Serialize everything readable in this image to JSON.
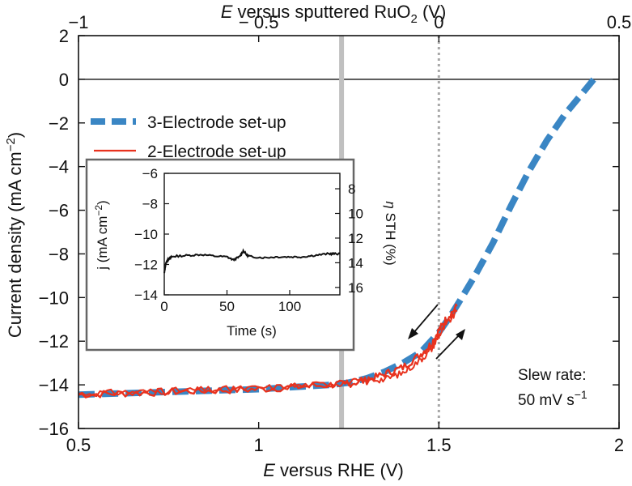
{
  "chart_data": {
    "type": "line",
    "main": {
      "x_label_prefix": "E",
      "x_label_rest": " versus RHE (V)",
      "top_label_prefix": "E",
      "top_label_rest": " versus sputtered RuO",
      "top_label_sub": "2",
      "top_label_end": " (V)",
      "y_label_main": "Current density (mA cm",
      "y_label_sup": "−2",
      "y_label_end": ")",
      "xlim": [
        0.5,
        2.0
      ],
      "ylim": [
        -16,
        2
      ],
      "x_ticks": [
        0.5,
        1.0,
        1.5,
        2.0
      ],
      "x_tick_labels": [
        "0.5",
        "1",
        "1.5",
        "2"
      ],
      "y_ticks": [
        2,
        0,
        -2,
        -4,
        -6,
        -8,
        -10,
        -12,
        -14,
        -16
      ],
      "y_tick_labels": [
        "2",
        "0",
        "−2",
        "−4",
        "−6",
        "−8",
        "−10",
        "−12",
        "−14",
        "−16"
      ],
      "top_ticks": [
        -1,
        -0.5,
        0,
        0.5
      ],
      "top_tick_labels": [
        "−1",
        "− 0.5",
        "0",
        "0.5"
      ],
      "top_offset": 1.5,
      "zero_line_y": 0,
      "vline_gray_x": 1.23,
      "vline_dotted_x": 1.5,
      "series": [
        {
          "name": "3-Electrode set-up",
          "color": "#3a86c4",
          "style": "dashed",
          "x": [
            0.5,
            0.6,
            0.7,
            0.8,
            0.9,
            1.0,
            1.1,
            1.2,
            1.25,
            1.3,
            1.35,
            1.4,
            1.45,
            1.5,
            1.53,
            1.56,
            1.6,
            1.65,
            1.7,
            1.75,
            1.8,
            1.85,
            1.9,
            1.93
          ],
          "y": [
            -14.45,
            -14.4,
            -14.35,
            -14.3,
            -14.25,
            -14.2,
            -14.1,
            -14.0,
            -13.9,
            -13.7,
            -13.4,
            -13.0,
            -12.5,
            -11.6,
            -10.9,
            -10.1,
            -9.0,
            -7.5,
            -5.8,
            -4.2,
            -2.8,
            -1.6,
            -0.6,
            0.0
          ]
        },
        {
          "name": "2-Electrode set-up",
          "color": "#e8321e",
          "style": "solid",
          "x": [
            0.5,
            0.6,
            0.7,
            0.8,
            0.9,
            1.0,
            1.1,
            1.2,
            1.25,
            1.3,
            1.35,
            1.4,
            1.45,
            1.48,
            1.5,
            1.52,
            1.55
          ],
          "y": [
            -14.45,
            -14.4,
            -14.35,
            -14.3,
            -14.25,
            -14.2,
            -14.1,
            -14.0,
            -13.95,
            -13.8,
            -13.5,
            -13.2,
            -12.6,
            -12.1,
            -11.5,
            -11.0,
            -10.4
          ]
        }
      ],
      "arrow_up_label": "",
      "slew_rate_line1": "Slew rate:",
      "slew_rate_line2": "50 mV s",
      "slew_rate_sup": "−1"
    },
    "inset": {
      "x_label": "Time (s)",
      "y_label_main": "j (mA cm",
      "y_label_sup": "−2",
      "y_label_end": ")",
      "y2_label_prefix": "η",
      "y2_label_rest": " STH (%)",
      "xlim": [
        0,
        140
      ],
      "ylim": [
        -14,
        -6
      ],
      "x_ticks": [
        0,
        50,
        100
      ],
      "x_tick_labels": [
        "0",
        "50",
        "100"
      ],
      "y_ticks": [
        -6,
        -8,
        -10,
        -12,
        -14
      ],
      "y_tick_labels": [
        "−6",
        "−8",
        "−10",
        "−12",
        "−14"
      ],
      "y2_ticks": [
        8,
        10,
        12,
        14,
        16
      ],
      "y2_tick_labels": [
        "8",
        "10",
        "12",
        "14",
        "16"
      ],
      "y2_lim": [
        6.75,
        16.6
      ],
      "series": {
        "color": "#111111",
        "x": [
          0,
          1,
          2,
          4,
          6,
          10,
          20,
          30,
          40,
          50,
          55,
          60,
          63,
          66,
          70,
          80,
          90,
          100,
          110,
          120,
          130,
          135,
          140
        ],
        "y": [
          -12.6,
          -12.0,
          -11.8,
          -11.6,
          -11.5,
          -11.45,
          -11.4,
          -11.35,
          -11.45,
          -11.5,
          -11.7,
          -11.5,
          -11.1,
          -11.4,
          -11.5,
          -11.55,
          -11.5,
          -11.5,
          -11.5,
          -11.4,
          -11.3,
          -11.3,
          -11.3
        ]
      }
    }
  }
}
